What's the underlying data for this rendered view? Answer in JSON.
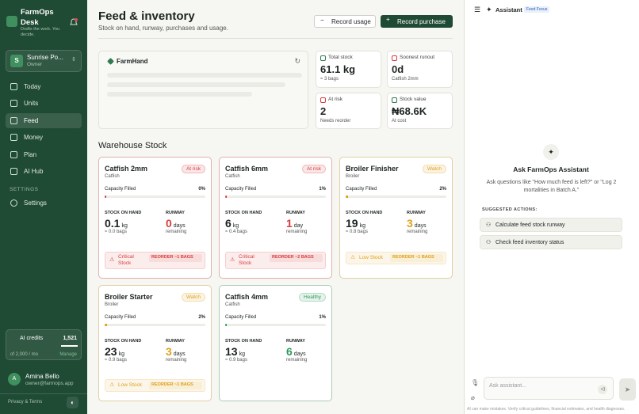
{
  "sidebar": {
    "brand": "FarmOps Desk",
    "tagline": "Drafts the work. You decide.",
    "org": {
      "initial": "S",
      "name": "Sunrise Po...",
      "role": "Owner"
    },
    "nav": [
      "Today",
      "Units",
      "Feed",
      "Money",
      "Plan",
      "AI Hub"
    ],
    "settings_heading": "SETTINGS",
    "settings": "Settings",
    "credits": {
      "label": "AI credits",
      "value": "1,521",
      "limit": "of 2,000 / mo",
      "action": "Manage"
    },
    "user": {
      "initial": "A",
      "name": "Amina Bello",
      "email": "owner@farmops.app"
    },
    "footer": "Privacy & Terms"
  },
  "header": {
    "title": "Feed & inventory",
    "subtitle": "Stock on hand, runway, purchases and usage.",
    "actions": [
      "Record usage",
      "Record purchase"
    ]
  },
  "farmhand": {
    "title": "FarmHand"
  },
  "stats": [
    {
      "label": "Total stock",
      "value": "61.1 kg",
      "note": "≈ 3 bags"
    },
    {
      "label": "Soonest runout",
      "value": "0d",
      "note": "Catfish 2mm"
    },
    {
      "label": "At risk",
      "value": "2",
      "note": "Needs reorder"
    },
    {
      "label": "Stock value",
      "value": "₦68.6K",
      "note": "At cost"
    }
  ],
  "warehouse": {
    "title": "Warehouse Stock",
    "labels": {
      "capacity": "Capacity Filled",
      "stock": "STOCK ON HAND",
      "runway": "RUNWAY",
      "remaining": "remaining"
    },
    "cards": [
      {
        "name": "Catfish 2mm",
        "type": "Catfish",
        "status": "At risk",
        "color": "#d93b3b",
        "capacity": "0%",
        "stock": "0.1",
        "stock_unit": "kg",
        "bags": "≈ 0.0 bags",
        "runway": "0",
        "runway_unit": "days",
        "alert": "Critical Stock",
        "reorder": "REORDER ~1 BAGS"
      },
      {
        "name": "Catfish 6mm",
        "type": "Catfish",
        "status": "At risk",
        "color": "#d93b3b",
        "capacity": "1%",
        "stock": "6",
        "stock_unit": "kg",
        "bags": "≈ 0.4 bags",
        "runway": "1",
        "runway_unit": "day",
        "alert": "Critical Stock",
        "reorder": "REORDER ~2 BAGS"
      },
      {
        "name": "Broiler Finisher",
        "type": "Broiler",
        "status": "Watch",
        "color": "#e0a019",
        "capacity": "2%",
        "stock": "19",
        "stock_unit": "kg",
        "bags": "≈ 0.8 bags",
        "runway": "3",
        "runway_unit": "days",
        "alert": "Low Stock",
        "reorder": "REORDER ~1 BAGS"
      },
      {
        "name": "Broiler Starter",
        "type": "Broiler",
        "status": "Watch",
        "color": "#e0a019",
        "capacity": "2%",
        "stock": "23",
        "stock_unit": "kg",
        "bags": "≈ 0.9 bags",
        "runway": "3",
        "runway_unit": "days",
        "alert": "Low Stock",
        "reorder": "REORDER ~1 BAGS"
      },
      {
        "name": "Catfish 4mm",
        "type": "Catfish",
        "status": "Healthy",
        "color": "#2f9a5c",
        "capacity": "1%",
        "stock": "13",
        "stock_unit": "kg",
        "bags": "≈ 0.9 bags",
        "runway": "6",
        "runway_unit": "days"
      }
    ]
  },
  "assistant": {
    "title": "Assistant",
    "badge": "Feed Focus",
    "heading": "Ask FarmOps Assistant",
    "intro": "Ask questions like \"How much feed is left?\" or \"Log 2 mortalities in Batch A.\"",
    "suggested_heading": "SUGGESTED ACTIONS:",
    "suggestions": [
      "Calculate feed stock runway",
      "Check feed inventory status"
    ],
    "placeholder": "Ask assistant...",
    "disclaimer": "AI can make mistakes. Verify critical guidelines, financial estimates, and health diagnoses."
  }
}
